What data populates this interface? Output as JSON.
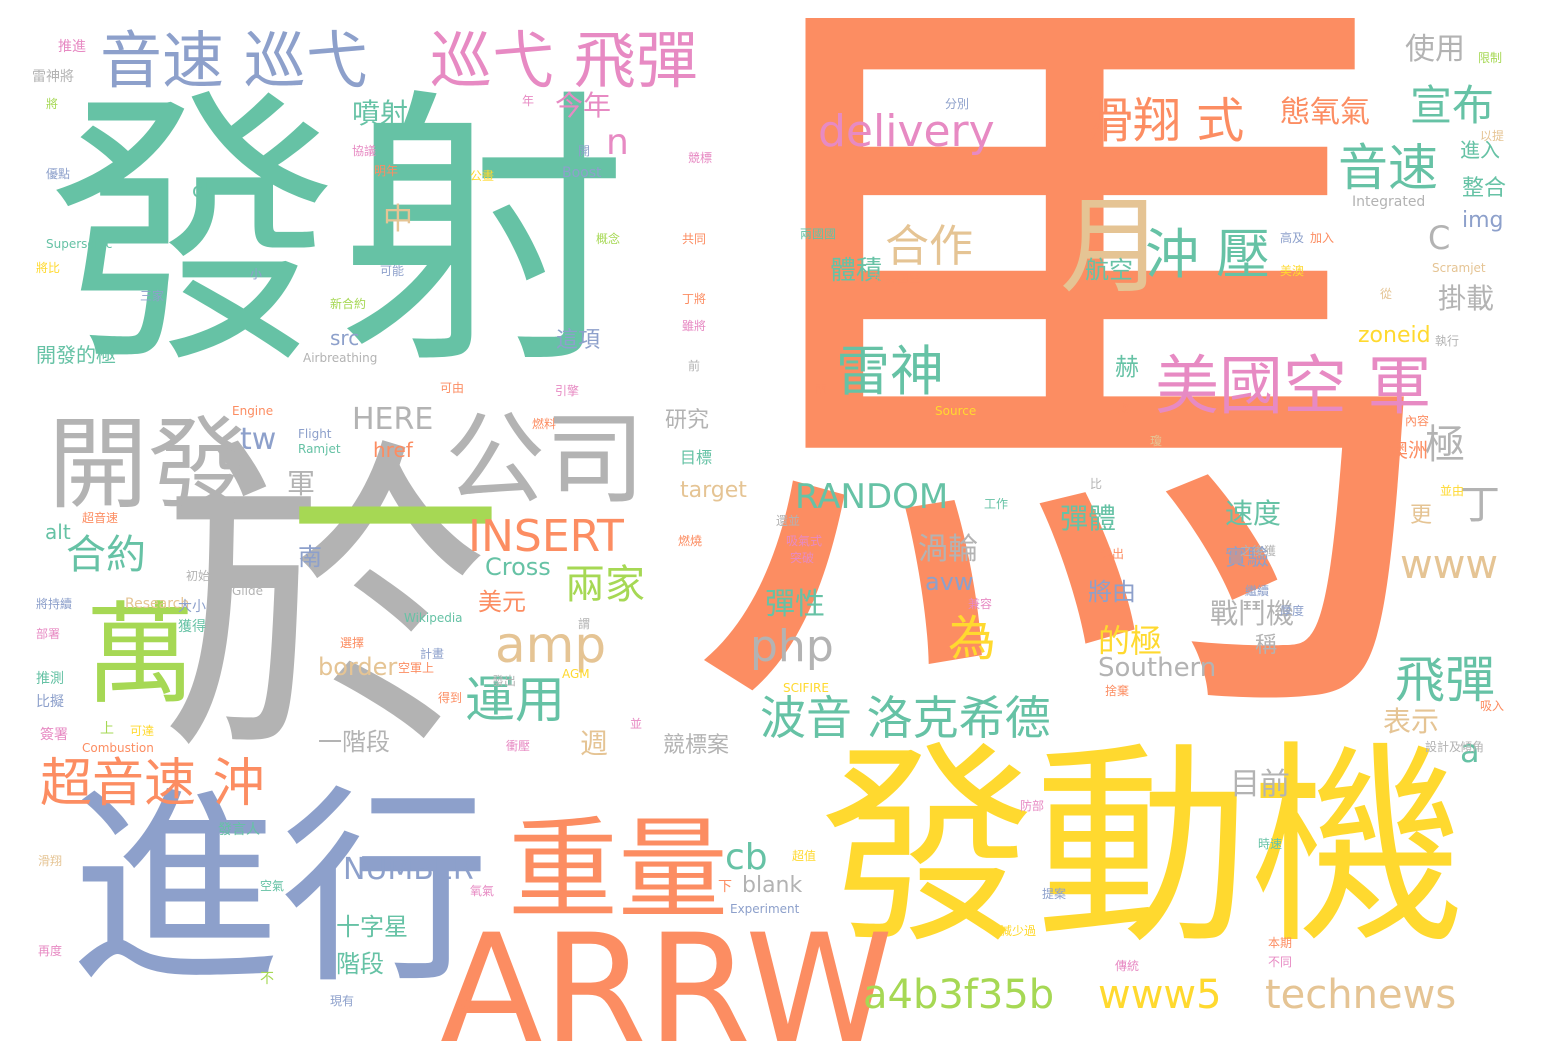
{
  "words": [
    {
      "text": "馬",
      "color": "#fc8d62"
    },
    {
      "text": "發射",
      "color": "#66c2a5"
    },
    {
      "text": "於",
      "color": "#b3b3b3"
    },
    {
      "text": "進行",
      "color": "#8da0cb"
    },
    {
      "text": "發動機",
      "color": "#ffd92f"
    },
    {
      "text": "ARRW",
      "color": "#fc8d62"
    },
    {
      "text": "一",
      "color": "#a6d854"
    },
    {
      "text": "重量",
      "color": "#fc8d62"
    },
    {
      "text": "開發",
      "color": "#b3b3b3"
    },
    {
      "text": "公司",
      "color": "#b3b3b3"
    },
    {
      "text": "萬",
      "color": "#a6d854"
    },
    {
      "text": "月",
      "color": "#e5c494"
    },
    {
      "text": "美國空 軍",
      "color": "#e78ac3"
    },
    {
      "text": "音速 巡弋",
      "color": "#8da0cb"
    },
    {
      "text": "巡弋 飛彈",
      "color": "#e78ac3"
    },
    {
      "text": "delivery",
      "color": "#e78ac3"
    },
    {
      "text": "滑翔 式",
      "color": "#fc8d62"
    },
    {
      "text": "宣布",
      "color": "#66c2a5"
    },
    {
      "text": "音速",
      "color": "#66c2a5"
    },
    {
      "text": "沖 壓",
      "color": "#66c2a5"
    },
    {
      "text": "合作",
      "color": "#e5c494"
    },
    {
      "text": "雷神",
      "color": "#66c2a5"
    },
    {
      "text": "RANDOM",
      "color": "#66c2a5"
    },
    {
      "text": "INSERT",
      "color": "#fc8d62"
    },
    {
      "text": "amp",
      "color": "#e5c494"
    },
    {
      "text": "php",
      "color": "#b3b3b3"
    },
    {
      "text": "波音 洛克希德",
      "color": "#66c2a5"
    },
    {
      "text": "運用",
      "color": "#66c2a5"
    },
    {
      "text": "超音速 沖",
      "color": "#fc8d62"
    },
    {
      "text": "飛彈",
      "color": "#66c2a5"
    },
    {
      "text": "a4b3f35b",
      "color": "#a6d854"
    },
    {
      "text": "www5",
      "color": "#ffd92f"
    },
    {
      "text": "technews",
      "color": "#e5c494"
    },
    {
      "text": "www",
      "color": "#e5c494"
    },
    {
      "text": "合約",
      "color": "#66c2a5"
    },
    {
      "text": "兩家",
      "color": "#a6d854"
    },
    {
      "text": "整合",
      "color": "#66c2a5"
    },
    {
      "text": "極",
      "color": "#b3b3b3"
    },
    {
      "text": "丁",
      "color": "#b3b3b3"
    },
    {
      "text": "cb",
      "color": "#66c2a5"
    },
    {
      "text": "NUMBER",
      "color": "#8da0cb"
    },
    {
      "text": "a",
      "color": "#66c2a5"
    },
    {
      "text": "今年",
      "color": "#e78ac3"
    },
    {
      "text": "噴射",
      "color": "#66c2a5"
    },
    {
      "text": "n",
      "color": "#e78ac3"
    },
    {
      "text": "態氧氣",
      "color": "#fc8d62"
    },
    {
      "text": "使用",
      "color": "#b3b3b3"
    },
    {
      "text": "進入",
      "color": "#66c2a5"
    },
    {
      "text": "img",
      "color": "#8da0cb"
    },
    {
      "text": "C",
      "color": "#b3b3b3"
    },
    {
      "text": "掛載",
      "color": "#b3b3b3"
    },
    {
      "text": "zoneid",
      "color": "#ffd92f"
    },
    {
      "text": "體積",
      "color": "#66c2a5"
    },
    {
      "text": "航空",
      "color": "#66c2a5"
    },
    {
      "text": "赫",
      "color": "#66c2a5"
    },
    {
      "text": "HERE",
      "color": "#b3b3b3"
    },
    {
      "text": "tw",
      "color": "#8da0cb"
    },
    {
      "text": "軍",
      "color": "#b3b3b3"
    },
    {
      "text": "href",
      "color": "#fc8d62"
    },
    {
      "text": "src",
      "color": "#8da0cb"
    },
    {
      "text": "中",
      "color": "#e5c494"
    },
    {
      "text": "ck",
      "color": "#66c2a5"
    },
    {
      "text": "研究",
      "color": "#b3b3b3"
    },
    {
      "text": "目標",
      "color": "#66c2a5"
    },
    {
      "text": "target",
      "color": "#e5c494"
    },
    {
      "text": "彈體",
      "color": "#66c2a5"
    },
    {
      "text": "速度",
      "color": "#66c2a5"
    },
    {
      "text": "更",
      "color": "#e5c494"
    },
    {
      "text": "渦輪",
      "color": "#b3b3b3"
    },
    {
      "text": "Cross",
      "color": "#66c2a5"
    },
    {
      "text": "美元",
      "color": "#fc8d62"
    },
    {
      "text": "avw",
      "color": "#8da0cb"
    },
    {
      "text": "彈性",
      "color": "#66c2a5"
    },
    {
      "text": "將由",
      "color": "#8da0cb"
    },
    {
      "text": "實驗",
      "color": "#8da0cb"
    },
    {
      "text": "戰鬥機",
      "color": "#b3b3b3"
    },
    {
      "text": "的極",
      "color": "#ffd92f"
    },
    {
      "text": "稱",
      "color": "#b3b3b3"
    },
    {
      "text": "Southern",
      "color": "#b3b3b3"
    },
    {
      "text": "border",
      "color": "#e5c494"
    },
    {
      "text": "南",
      "color": "#8da0cb"
    },
    {
      "text": "alt",
      "color": "#66c2a5"
    },
    {
      "text": "週",
      "color": "#e5c494"
    },
    {
      "text": "為",
      "color": "#ffd92f"
    },
    {
      "text": "表示",
      "color": "#e5c494"
    },
    {
      "text": "一階段",
      "color": "#b3b3b3"
    },
    {
      "text": "競標案",
      "color": "#b3b3b3"
    },
    {
      "text": "目前",
      "color": "#b3b3b3"
    },
    {
      "text": "blank",
      "color": "#b3b3b3"
    },
    {
      "text": "十字星",
      "color": "#66c2a5"
    },
    {
      "text": "階段",
      "color": "#66c2a5"
    },
    {
      "text": "這項",
      "color": "#8da0cb"
    },
    {
      "text": "開發的極",
      "color": "#66c2a5"
    },
    {
      "text": "澳洲",
      "color": "#fc8d62"
    },
    {
      "text": "推進",
      "color": "#e78ac3"
    },
    {
      "text": "雷神將",
      "color": "#b3b3b3"
    },
    {
      "text": "限制",
      "color": "#a6d854"
    },
    {
      "text": "分別",
      "color": "#8da0cb"
    },
    {
      "text": "Boost",
      "color": "#8da0cb"
    },
    {
      "text": "Integrated",
      "color": "#b3b3b3"
    },
    {
      "text": "Supersonic",
      "color": "#66c2a5"
    },
    {
      "text": "Airbreathing",
      "color": "#b3b3b3"
    },
    {
      "text": "Scramjet",
      "color": "#e5c494"
    },
    {
      "text": "Engine",
      "color": "#fc8d62"
    },
    {
      "text": "Flight",
      "color": "#8da0cb"
    },
    {
      "text": "Ramjet",
      "color": "#66c2a5"
    },
    {
      "text": "Source",
      "color": "#ffd92f"
    },
    {
      "text": "Research",
      "color": "#e5c494"
    },
    {
      "text": "Glide",
      "color": "#b3b3b3"
    },
    {
      "text": "Wikipedia",
      "color": "#66c2a5"
    },
    {
      "text": "AGM",
      "color": "#ffd92f"
    },
    {
      "text": "SCIFIRE",
      "color": "#ffd92f"
    },
    {
      "text": "Combustion",
      "color": "#fc8d62"
    },
    {
      "text": "Experiment",
      "color": "#8da0cb"
    },
    {
      "text": "工作",
      "color": "#66c2a5"
    },
    {
      "text": "超音速",
      "color": "#fc8d62"
    },
    {
      "text": "大小",
      "color": "#8da0cb"
    },
    {
      "text": "獲得",
      "color": "#66c2a5"
    },
    {
      "text": "推測",
      "color": "#66c2a5"
    },
    {
      "text": "比擬",
      "color": "#8da0cb"
    },
    {
      "text": "簽署",
      "color": "#e78ac3"
    },
    {
      "text": "上",
      "color": "#a6d854"
    },
    {
      "text": "可達",
      "color": "#ffd92f"
    },
    {
      "text": "衝壓",
      "color": "#e78ac3"
    },
    {
      "text": "發言人",
      "color": "#66c2a5"
    },
    {
      "text": "滑翔",
      "color": "#e5c494"
    },
    {
      "text": "再度",
      "color": "#e78ac3"
    },
    {
      "text": "不",
      "color": "#a6d854"
    },
    {
      "text": "現有",
      "color": "#8da0cb"
    },
    {
      "text": "第一",
      "color": "#fc8d62"
    },
    {
      "text": "下",
      "color": "#fc8d62"
    },
    {
      "text": "計畫",
      "color": "#8da0cb"
    },
    {
      "text": "空軍上",
      "color": "#fc8d62"
    },
    {
      "text": "得到",
      "color": "#fc8d62"
    },
    {
      "text": "發出",
      "color": "#b3b3b3"
    },
    {
      "text": "選擇",
      "color": "#fc8d62"
    },
    {
      "text": "可由",
      "color": "#fc8d62"
    },
    {
      "text": "引擎",
      "color": "#e78ac3"
    },
    {
      "text": "燃料",
      "color": "#fc8d62"
    },
    {
      "text": "年",
      "color": "#e78ac3"
    },
    {
      "text": "明年",
      "color": "#fc8d62"
    },
    {
      "text": "協議",
      "color": "#e78ac3"
    },
    {
      "text": "將",
      "color": "#a6d854"
    },
    {
      "text": "優點",
      "color": "#8da0cb"
    },
    {
      "text": "將比",
      "color": "#ffd92f"
    },
    {
      "text": "三家",
      "color": "#8da0cb"
    },
    {
      "text": "可能",
      "color": "#8da0cb"
    },
    {
      "text": "新合約",
      "color": "#a6d854"
    },
    {
      "text": "丁將",
      "color": "#fc8d62"
    },
    {
      "text": "雖將",
      "color": "#e78ac3"
    },
    {
      "text": "前",
      "color": "#b3b3b3"
    },
    {
      "text": "共同",
      "color": "#fc8d62"
    },
    {
      "text": "概念",
      "color": "#a6d854"
    },
    {
      "text": "公畫",
      "color": "#ffd92f"
    },
    {
      "text": "兩國國",
      "color": "#66c2a5"
    },
    {
      "text": "如美國空",
      "color": "#fc8d62"
    },
    {
      "text": "高及",
      "color": "#8da0cb"
    },
    {
      "text": "加入",
      "color": "#fc8d62"
    },
    {
      "text": "美澳",
      "color": "#ffd92f"
    },
    {
      "text": "從",
      "color": "#e5c494"
    },
    {
      "text": "執行",
      "color": "#b3b3b3"
    },
    {
      "text": "以提",
      "color": "#e5c494"
    },
    {
      "text": "內容",
      "color": "#fc8d62"
    },
    {
      "text": "並由",
      "color": "#ffd92f"
    },
    {
      "text": "一款",
      "color": "#fc8d62"
    },
    {
      "text": "退出",
      "color": "#fc8d62"
    },
    {
      "text": "之後獲",
      "color": "#b3b3b3"
    },
    {
      "text": "繼續",
      "color": "#8da0cb"
    },
    {
      "text": "厚度",
      "color": "#8da0cb"
    },
    {
      "text": "捨棄",
      "color": "#fc8d62"
    },
    {
      "text": "吸入",
      "color": "#fc8d62"
    },
    {
      "text": "設計及",
      "color": "#b3b3b3"
    },
    {
      "text": "傾角",
      "color": "#b3b3b3"
    },
    {
      "text": "防部",
      "color": "#e78ac3"
    },
    {
      "text": "時速",
      "color": "#66c2a5"
    },
    {
      "text": "提案",
      "color": "#8da0cb"
    },
    {
      "text": "本期",
      "color": "#fc8d62"
    },
    {
      "text": "不同",
      "color": "#e78ac3"
    },
    {
      "text": "傳統",
      "color": "#e78ac3"
    },
    {
      "text": "減少過",
      "color": "#ffd92f"
    },
    {
      "text": "氧氣",
      "color": "#e78ac3"
    },
    {
      "text": "空氣",
      "color": "#66c2a5"
    },
    {
      "text": "超值",
      "color": "#ffd92f"
    },
    {
      "text": "吸氣式",
      "color": "#e78ac3"
    },
    {
      "text": "突破",
      "color": "#e78ac3"
    },
    {
      "text": "還並",
      "color": "#b3b3b3"
    },
    {
      "text": "燃燒",
      "color": "#fc8d62"
    },
    {
      "text": "初始",
      "color": "#b3b3b3"
    },
    {
      "text": "將持續",
      "color": "#8da0cb"
    },
    {
      "text": "謂",
      "color": "#b3b3b3"
    },
    {
      "text": "競標",
      "color": "#e78ac3"
    },
    {
      "text": "開",
      "color": "#8da0cb"
    },
    {
      "text": "小",
      "color": "#8da0cb"
    },
    {
      "text": "部署",
      "color": "#e78ac3"
    },
    {
      "text": "南",
      "color": "#fc8d62"
    },
    {
      "text": "兼容",
      "color": "#e78ac3"
    },
    {
      "text": "比",
      "color": "#b3b3b3"
    },
    {
      "text": "並",
      "color": "#e78ac3"
    },
    {
      "text": "瓊",
      "color": "#e5c494"
    }
  ]
}
